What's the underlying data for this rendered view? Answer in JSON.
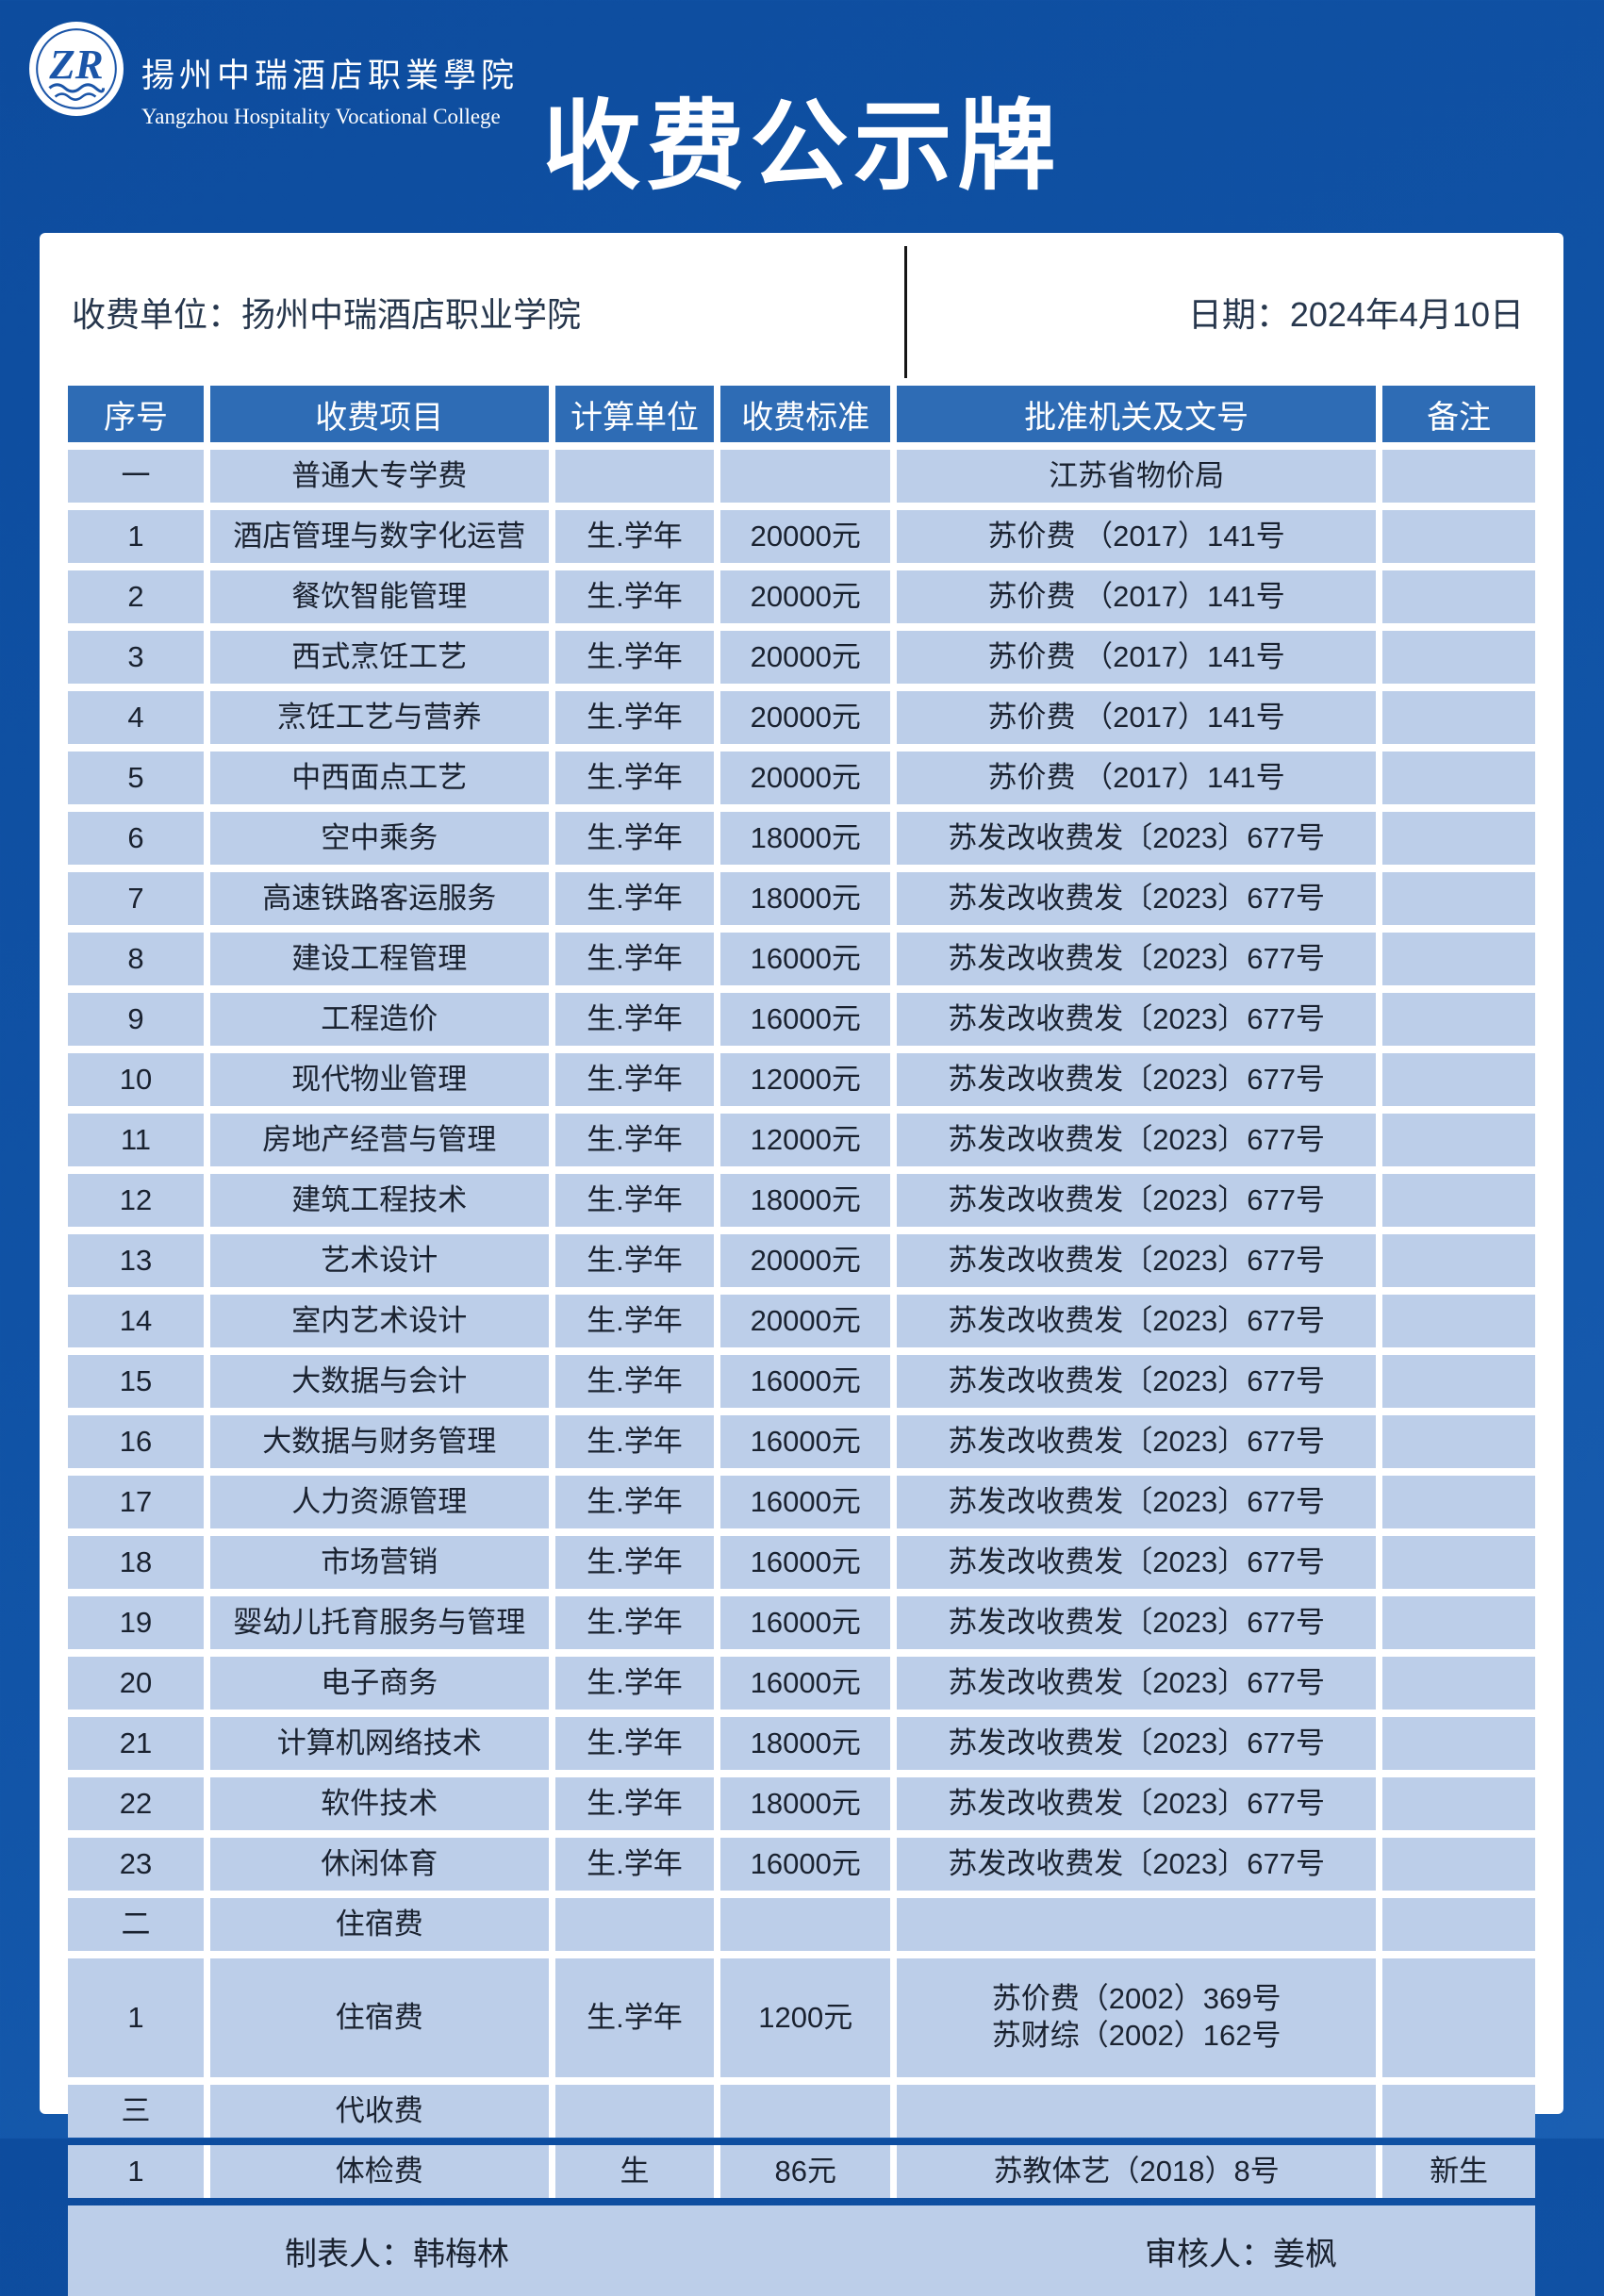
{
  "page": {
    "background_color": "#0f51a5",
    "panel_color": "#ffffff",
    "header_row_color": "#2e6cb5",
    "data_row_color": "#bccee9"
  },
  "brand": {
    "logo_monogram": "ZR",
    "college_name_cn": "揚州中瑞酒店职業學院",
    "college_name_en": "Yangzhou Hospitality Vocational College"
  },
  "title": "收费公示牌",
  "info_bar": {
    "unit_label": "收费单位：扬州中瑞酒店职业学院",
    "date_label": "日期：2024年4月10日"
  },
  "table": {
    "columns": [
      "序号",
      "收费项目",
      "计算单位",
      "收费标准",
      "批准机关及文号",
      "备注"
    ],
    "rows": [
      {
        "no": "一",
        "item": "普通大专学费",
        "unit": "",
        "standard": "",
        "authority": "江苏省物价局",
        "note": ""
      },
      {
        "no": "1",
        "item": "酒店管理与数字化运营",
        "unit": "生.学年",
        "standard": "20000元",
        "authority": "苏价费 （2017）141号",
        "note": ""
      },
      {
        "no": "2",
        "item": "餐饮智能管理",
        "unit": "生.学年",
        "standard": "20000元",
        "authority": "苏价费 （2017）141号",
        "note": ""
      },
      {
        "no": "3",
        "item": "西式烹饪工艺",
        "unit": "生.学年",
        "standard": "20000元",
        "authority": "苏价费 （2017）141号",
        "note": ""
      },
      {
        "no": "4",
        "item": "烹饪工艺与营养",
        "unit": "生.学年",
        "standard": "20000元",
        "authority": "苏价费 （2017）141号",
        "note": ""
      },
      {
        "no": "5",
        "item": "中西面点工艺",
        "unit": "生.学年",
        "standard": "20000元",
        "authority": "苏价费 （2017）141号",
        "note": ""
      },
      {
        "no": "6",
        "item": "空中乘务",
        "unit": "生.学年",
        "standard": "18000元",
        "authority": "苏发改收费发〔2023〕677号",
        "note": ""
      },
      {
        "no": "7",
        "item": "高速铁路客运服务",
        "unit": "生.学年",
        "standard": "18000元",
        "authority": "苏发改收费发〔2023〕677号",
        "note": ""
      },
      {
        "no": "8",
        "item": "建设工程管理",
        "unit": "生.学年",
        "standard": "16000元",
        "authority": "苏发改收费发〔2023〕677号",
        "note": ""
      },
      {
        "no": "9",
        "item": "工程造价",
        "unit": "生.学年",
        "standard": "16000元",
        "authority": "苏发改收费发〔2023〕677号",
        "note": ""
      },
      {
        "no": "10",
        "item": "现代物业管理",
        "unit": "生.学年",
        "standard": "12000元",
        "authority": "苏发改收费发〔2023〕677号",
        "note": ""
      },
      {
        "no": "11",
        "item": "房地产经营与管理",
        "unit": "生.学年",
        "standard": "12000元",
        "authority": "苏发改收费发〔2023〕677号",
        "note": ""
      },
      {
        "no": "12",
        "item": "建筑工程技术",
        "unit": "生.学年",
        "standard": "18000元",
        "authority": "苏发改收费发〔2023〕677号",
        "note": ""
      },
      {
        "no": "13",
        "item": "艺术设计",
        "unit": "生.学年",
        "standard": "20000元",
        "authority": "苏发改收费发〔2023〕677号",
        "note": ""
      },
      {
        "no": "14",
        "item": "室内艺术设计",
        "unit": "生.学年",
        "standard": "20000元",
        "authority": "苏发改收费发〔2023〕677号",
        "note": ""
      },
      {
        "no": "15",
        "item": "大数据与会计",
        "unit": "生.学年",
        "standard": "16000元",
        "authority": "苏发改收费发〔2023〕677号",
        "note": ""
      },
      {
        "no": "16",
        "item": "大数据与财务管理",
        "unit": "生.学年",
        "standard": "16000元",
        "authority": "苏发改收费发〔2023〕677号",
        "note": ""
      },
      {
        "no": "17",
        "item": "人力资源管理",
        "unit": "生.学年",
        "standard": "16000元",
        "authority": "苏发改收费发〔2023〕677号",
        "note": ""
      },
      {
        "no": "18",
        "item": "市场营销",
        "unit": "生.学年",
        "standard": "16000元",
        "authority": "苏发改收费发〔2023〕677号",
        "note": ""
      },
      {
        "no": "19",
        "item": "婴幼儿托育服务与管理",
        "unit": "生.学年",
        "standard": "16000元",
        "authority": "苏发改收费发〔2023〕677号",
        "note": ""
      },
      {
        "no": "20",
        "item": "电子商务",
        "unit": "生.学年",
        "standard": "16000元",
        "authority": "苏发改收费发〔2023〕677号",
        "note": ""
      },
      {
        "no": "21",
        "item": "计算机网络技术",
        "unit": "生.学年",
        "standard": "18000元",
        "authority": "苏发改收费发〔2023〕677号",
        "note": ""
      },
      {
        "no": "22",
        "item": "软件技术",
        "unit": "生.学年",
        "standard": "18000元",
        "authority": "苏发改收费发〔2023〕677号",
        "note": ""
      },
      {
        "no": "23",
        "item": "休闲体育",
        "unit": "生.学年",
        "standard": "16000元",
        "authority": "苏发改收费发〔2023〕677号",
        "note": ""
      },
      {
        "no": "二",
        "item": "住宿费",
        "unit": "",
        "standard": "",
        "authority": "",
        "note": ""
      },
      {
        "no": "1",
        "item": "住宿费",
        "unit": "生.学年",
        "standard": "1200元",
        "authority": "苏价费（2002）369号\n苏财综（2002）162号",
        "note": ""
      },
      {
        "no": "三",
        "item": "代收费",
        "unit": "",
        "standard": "",
        "authority": "",
        "note": ""
      },
      {
        "no": "1",
        "item": "体检费",
        "unit": "生",
        "standard": "86元",
        "authority": "苏教体艺（2018）8号",
        "note": "新生"
      }
    ]
  },
  "footer": {
    "preparer": "制表人：韩梅林",
    "reviewer": "审核人：姜枫"
  }
}
